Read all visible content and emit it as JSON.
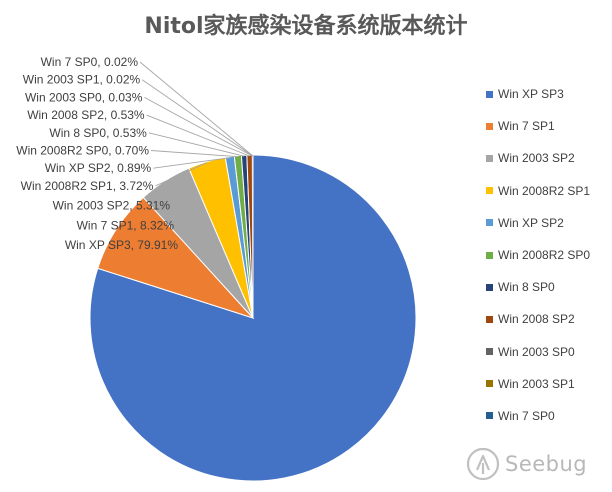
{
  "chart_data": {
    "type": "pie",
    "title": "Nitol家族感染设备系统版本统计",
    "series": [
      {
        "name": "Win XP SP3",
        "value": 79.91,
        "label": "Win XP SP3, 79.91%",
        "color": "#4472C4"
      },
      {
        "name": "Win 7 SP1",
        "value": 8.32,
        "label": "Win 7 SP1, 8.32%",
        "color": "#ED7D31"
      },
      {
        "name": "Win 2003 SP2",
        "value": 5.31,
        "label": "Win 2003 SP2, 5.31%",
        "color": "#A5A5A5"
      },
      {
        "name": "Win 2008R2 SP1",
        "value": 3.72,
        "label": "Win 2008R2 SP1, 3.72%",
        "color": "#FFC000"
      },
      {
        "name": "Win XP SP2",
        "value": 0.89,
        "label": "Win XP SP2, 0.89%",
        "color": "#5B9BD5"
      },
      {
        "name": "Win 2008R2 SP0",
        "value": 0.7,
        "label": "Win 2008R2 SP0, 0.70%",
        "color": "#70AD47"
      },
      {
        "name": "Win 8 SP0",
        "value": 0.53,
        "label": "Win 8 SP0, 0.53%",
        "color": "#264478"
      },
      {
        "name": "Win 2008 SP2",
        "value": 0.53,
        "label": "Win 2008 SP2, 0.53%",
        "color": "#9E480E"
      },
      {
        "name": "Win 2003 SP0",
        "value": 0.03,
        "label": "Win 2003 SP0, 0.03%",
        "color": "#636363"
      },
      {
        "name": "Win 2003 SP1",
        "value": 0.02,
        "label": "Win 2003 SP1, 0.02%",
        "color": "#997300"
      },
      {
        "name": "Win 7 SP0",
        "value": 0.02,
        "label": "Win 7 SP0, 0.02%",
        "color": "#255E91"
      }
    ],
    "legend": "right"
  },
  "watermark": {
    "text": "Seebug",
    "icon": "seebug-logo-icon"
  }
}
